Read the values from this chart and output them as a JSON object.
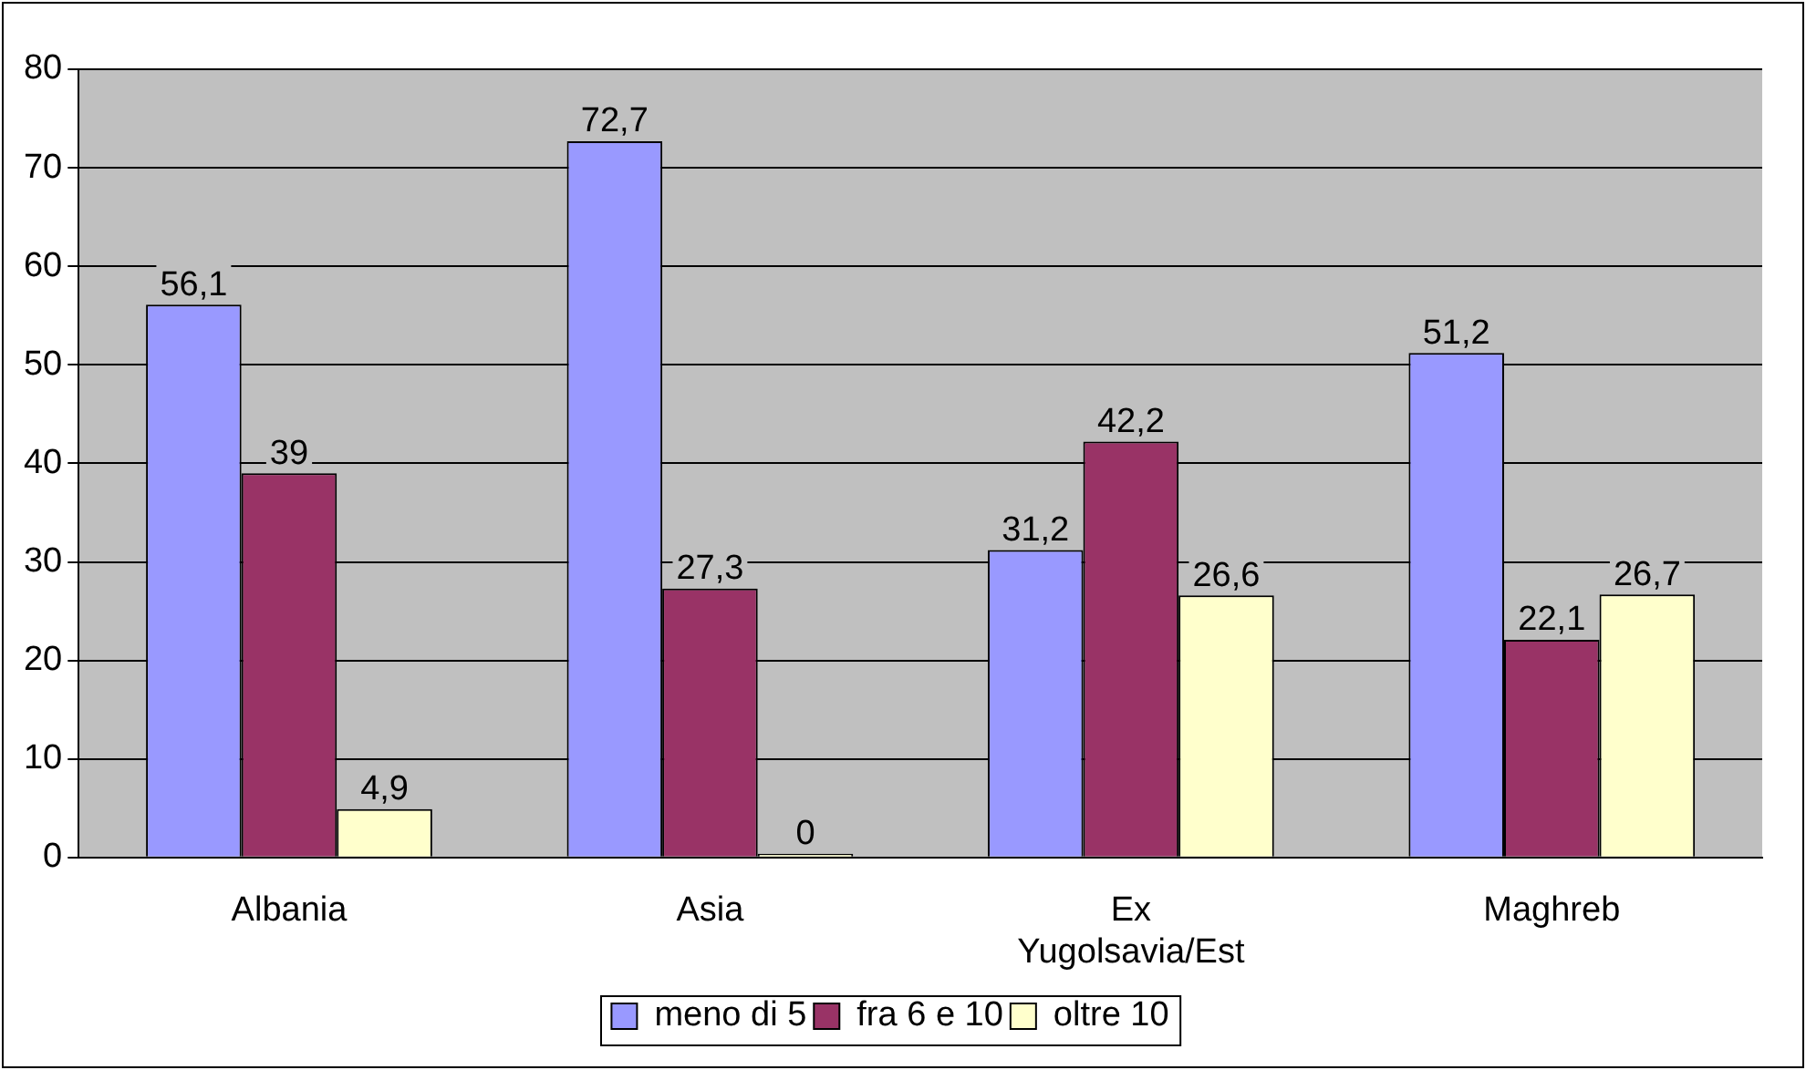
{
  "chart_data": {
    "type": "bar",
    "categories": [
      "Albania",
      "Asia",
      "Ex Yugolsavia/Est",
      "Maghreb"
    ],
    "series": [
      {
        "name": "meno di 5",
        "color": "#9999ff",
        "values": [
          56.1,
          72.7,
          31.2,
          51.2
        ],
        "value_labels": [
          "56,1",
          "72,7",
          "31,2",
          "51,2"
        ]
      },
      {
        "name": "fra 6 e 10",
        "color": "#993366",
        "values": [
          39,
          27.3,
          42.2,
          22.1
        ],
        "value_labels": [
          "39",
          "27,3",
          "42,2",
          "22,1"
        ]
      },
      {
        "name": "oltre 10",
        "color": "#ffffcc",
        "values": [
          4.9,
          0,
          26.6,
          26.7
        ],
        "value_labels": [
          "4,9",
          "0",
          "26,6",
          "26,7"
        ]
      }
    ],
    "ylim": [
      0,
      80
    ],
    "yticks": [
      0,
      10,
      20,
      30,
      40,
      50,
      60,
      70,
      80
    ],
    "grid": "y",
    "legend": "bottom"
  }
}
